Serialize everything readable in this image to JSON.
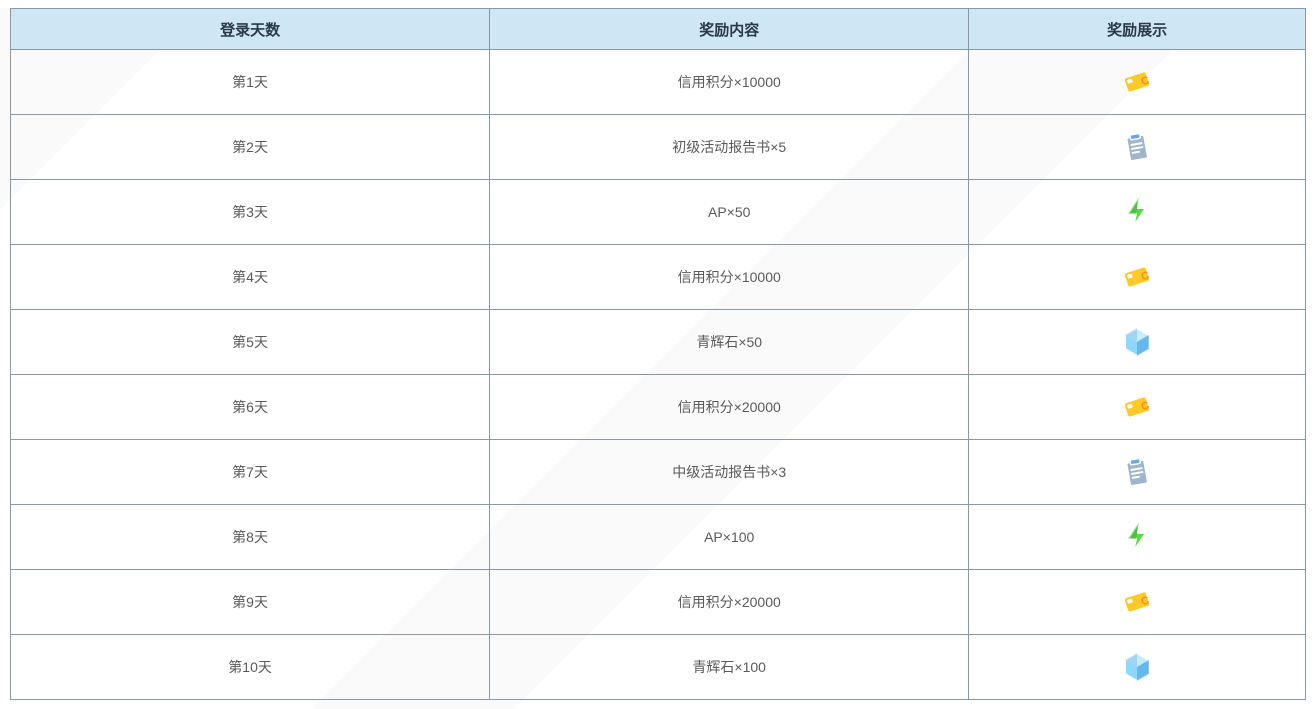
{
  "table": {
    "header_bg": "#cfe6f5",
    "header_text_color": "#2a3a4a",
    "header_fontsize": 15,
    "cell_text_color": "#5a5a5a",
    "cell_fontsize": 14,
    "border_color": "#8a98a6",
    "row_bg": "#ffffff",
    "columns": [
      "登录天数",
      "奖励内容",
      "奖励展示"
    ],
    "rows": [
      {
        "day": "第1天",
        "reward": "信用积分×10000",
        "icon": "credit"
      },
      {
        "day": "第2天",
        "reward": "初级活动报告书×5",
        "icon": "report"
      },
      {
        "day": "第3天",
        "reward": "AP×50",
        "icon": "ap"
      },
      {
        "day": "第4天",
        "reward": "信用积分×10000",
        "icon": "credit"
      },
      {
        "day": "第5天",
        "reward": "青辉石×50",
        "icon": "pyroxene"
      },
      {
        "day": "第6天",
        "reward": "信用积分×20000",
        "icon": "credit"
      },
      {
        "day": "第7天",
        "reward": "中级活动报告书×3",
        "icon": "report"
      },
      {
        "day": "第8天",
        "reward": "AP×100",
        "icon": "ap"
      },
      {
        "day": "第9天",
        "reward": "信用积分×20000",
        "icon": "credit"
      },
      {
        "day": "第10天",
        "reward": "青辉石×100",
        "icon": "pyroxene"
      }
    ]
  },
  "icons": {
    "credit": {
      "label": "credit-card-icon",
      "primary": "#ffc928",
      "accent": "#ff8a1f",
      "outline": "#ffffff"
    },
    "report": {
      "label": "report-icon",
      "primary": "#9fb5cc",
      "accent": "#6aa7e6",
      "outline": "#ffffff"
    },
    "ap": {
      "label": "lightning-icon",
      "primary": "#5fd54a",
      "accent": "#2fa82a",
      "outline": "#ffffff"
    },
    "pyroxene": {
      "label": "gem-icon",
      "primary": "#8fd7ff",
      "accent": "#4aa3e0",
      "outline": "#ffffff"
    }
  }
}
